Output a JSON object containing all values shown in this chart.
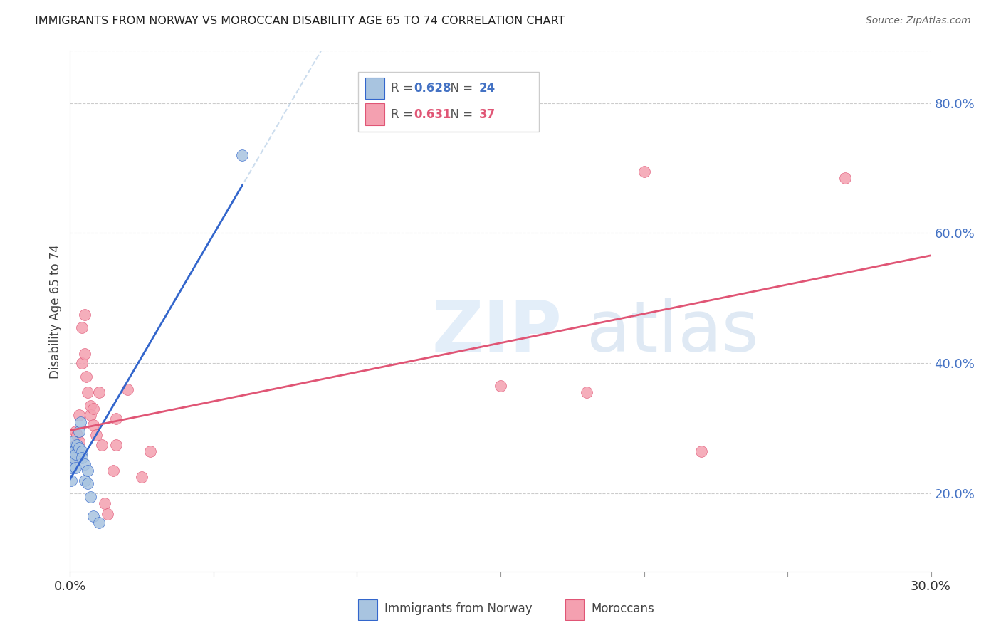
{
  "title": "IMMIGRANTS FROM NORWAY VS MOROCCAN DISABILITY AGE 65 TO 74 CORRELATION CHART",
  "source": "Source: ZipAtlas.com",
  "ylabel": "Disability Age 65 to 74",
  "xlim": [
    0.0,
    0.3
  ],
  "ylim": [
    0.08,
    0.88
  ],
  "norway_x": [
    0.0005,
    0.0005,
    0.0008,
    0.001,
    0.001,
    0.0012,
    0.0015,
    0.0015,
    0.002,
    0.002,
    0.0025,
    0.003,
    0.003,
    0.0035,
    0.004,
    0.004,
    0.005,
    0.005,
    0.006,
    0.006,
    0.007,
    0.008,
    0.01,
    0.06
  ],
  "norway_y": [
    0.24,
    0.22,
    0.265,
    0.27,
    0.255,
    0.28,
    0.265,
    0.255,
    0.24,
    0.26,
    0.275,
    0.27,
    0.295,
    0.31,
    0.265,
    0.255,
    0.245,
    0.22,
    0.235,
    0.215,
    0.195,
    0.165,
    0.155,
    0.72
  ],
  "moroccan_x": [
    0.0005,
    0.0008,
    0.001,
    0.001,
    0.001,
    0.0015,
    0.002,
    0.002,
    0.0025,
    0.003,
    0.003,
    0.004,
    0.004,
    0.005,
    0.005,
    0.0055,
    0.006,
    0.007,
    0.007,
    0.008,
    0.008,
    0.009,
    0.01,
    0.011,
    0.012,
    0.013,
    0.015,
    0.016,
    0.016,
    0.02,
    0.025,
    0.028,
    0.15,
    0.18,
    0.2,
    0.22,
    0.27
  ],
  "moroccan_y": [
    0.265,
    0.255,
    0.27,
    0.265,
    0.255,
    0.265,
    0.295,
    0.275,
    0.29,
    0.32,
    0.28,
    0.455,
    0.4,
    0.475,
    0.415,
    0.38,
    0.355,
    0.335,
    0.32,
    0.33,
    0.305,
    0.29,
    0.355,
    0.275,
    0.185,
    0.168,
    0.235,
    0.315,
    0.275,
    0.36,
    0.225,
    0.265,
    0.365,
    0.355,
    0.695,
    0.265,
    0.685
  ],
  "norway_color": "#a8c4e0",
  "moroccan_color": "#f4a0b0",
  "norway_line_color": "#3366cc",
  "moroccan_line_color": "#e05575",
  "norway_R": 0.628,
  "norway_N": 24,
  "moroccan_R": 0.631,
  "moroccan_N": 37,
  "yticks": [
    0.2,
    0.4,
    0.6,
    0.8
  ],
  "ytick_labels": [
    "20.0%",
    "40.0%",
    "60.0%",
    "80.0%"
  ],
  "xticks": [
    0.0,
    0.05,
    0.1,
    0.15,
    0.2,
    0.25,
    0.3
  ],
  "xtick_labels": [
    "0.0%",
    "",
    "",
    "",
    "",
    "",
    "30.0%"
  ],
  "legend_color_norway": "#a8c4e0",
  "legend_color_moroccan": "#f4a0b0",
  "background_color": "#ffffff"
}
